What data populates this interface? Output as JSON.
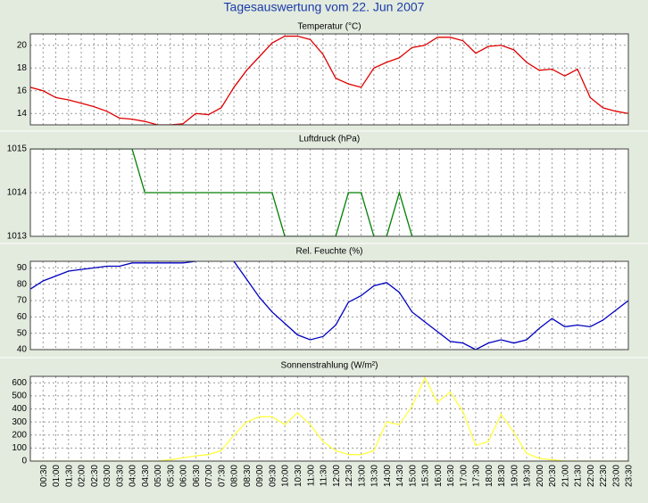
{
  "title": "Tagesauswertung vom 22. Jun 2007",
  "chart_data": [
    {
      "type": "line",
      "title": "Temperatur (°C)",
      "color": "#e00000",
      "grid": true,
      "ylim": [
        13,
        21
      ],
      "yticks": [
        14,
        16,
        18,
        20
      ],
      "values": [
        16.3,
        16.0,
        15.4,
        15.2,
        14.9,
        14.6,
        14.2,
        13.6,
        13.5,
        13.3,
        13.0,
        13.0,
        13.1,
        14.0,
        13.9,
        14.5,
        16.3,
        17.8,
        19.0,
        20.2,
        20.8,
        20.8,
        20.5,
        19.2,
        17.1,
        16.6,
        16.3,
        18.0,
        18.5,
        18.9,
        19.8,
        20.0,
        20.7,
        20.7,
        20.4,
        19.3,
        19.9,
        20.0,
        19.6,
        18.5,
        17.8,
        17.9,
        17.3,
        17.9,
        15.4,
        14.5,
        14.2,
        14.0
      ]
    },
    {
      "type": "line",
      "title": "Luftdruck (hPa)",
      "color": "#008000",
      "grid": true,
      "ylim": [
        1013,
        1015
      ],
      "yticks": [
        1013,
        1014,
        1015
      ],
      "values": [
        1015,
        1015,
        1015,
        1015,
        1015,
        1015,
        1015,
        1015,
        1015,
        1014,
        1014,
        1014,
        1014,
        1014,
        1014,
        1014,
        1014,
        1014,
        1014,
        1014,
        1013,
        1013,
        1013,
        1013,
        1013,
        1014,
        1014,
        1013,
        1013,
        1014,
        1013,
        1013,
        1013,
        1013,
        1013,
        1013,
        1013,
        1013,
        1013,
        1013,
        1013,
        1013,
        1013,
        1013,
        1013,
        1013,
        1013,
        1013
      ]
    },
    {
      "type": "line",
      "title": "Rel. Feuchte (%)",
      "color": "#0000c0",
      "grid": true,
      "ylim": [
        40,
        94
      ],
      "yticks": [
        40,
        50,
        60,
        70,
        80,
        90
      ],
      "values": [
        77,
        82,
        85,
        88,
        89,
        90,
        91,
        91,
        93,
        93,
        93,
        93,
        93,
        94,
        95,
        95,
        94,
        83,
        72,
        63,
        56,
        49,
        46,
        48,
        55,
        69,
        73,
        79,
        81,
        75,
        63,
        57,
        51,
        45,
        44,
        40,
        44,
        46,
        44,
        46,
        53,
        59,
        54,
        55,
        54,
        58,
        64,
        70
      ]
    },
    {
      "type": "line",
      "title": "Sonnenstrahlung (W/m²)",
      "color": "#ffff40",
      "grid": true,
      "ylim": [
        0,
        650
      ],
      "yticks": [
        0,
        100,
        200,
        300,
        400,
        500,
        600
      ],
      "values": [
        0,
        0,
        0,
        0,
        0,
        0,
        0,
        0,
        0,
        0,
        0,
        10,
        25,
        40,
        50,
        80,
        200,
        300,
        340,
        340,
        280,
        370,
        280,
        150,
        80,
        50,
        50,
        80,
        300,
        280,
        420,
        640,
        450,
        530,
        380,
        120,
        150,
        360,
        220,
        60,
        20,
        10,
        0,
        0,
        0,
        0,
        0,
        0
      ],
      "categories": [
        null,
        "00:30",
        "01:00",
        "01:30",
        "02:00",
        "02:30",
        "03:00",
        "03:30",
        "04:00",
        "04:30",
        "05:00",
        "05:30",
        "06:00",
        "06:30",
        "07:00",
        "07:30",
        "08:00",
        "08:30",
        "09:00",
        "09:30",
        "10:00",
        "10:30",
        "11:00",
        "11:30",
        "12:00",
        "12:30",
        "13:00",
        "13:30",
        "14:00",
        "14:30",
        "15:00",
        "15:30",
        "16:00",
        "16:30",
        "17:00",
        "17:30",
        "18:00",
        "18:30",
        "19:00",
        "19:30",
        "20:00",
        "20:30",
        "21:00",
        "21:30",
        "22:00",
        "22:30",
        "23:00",
        "23:30"
      ]
    }
  ]
}
